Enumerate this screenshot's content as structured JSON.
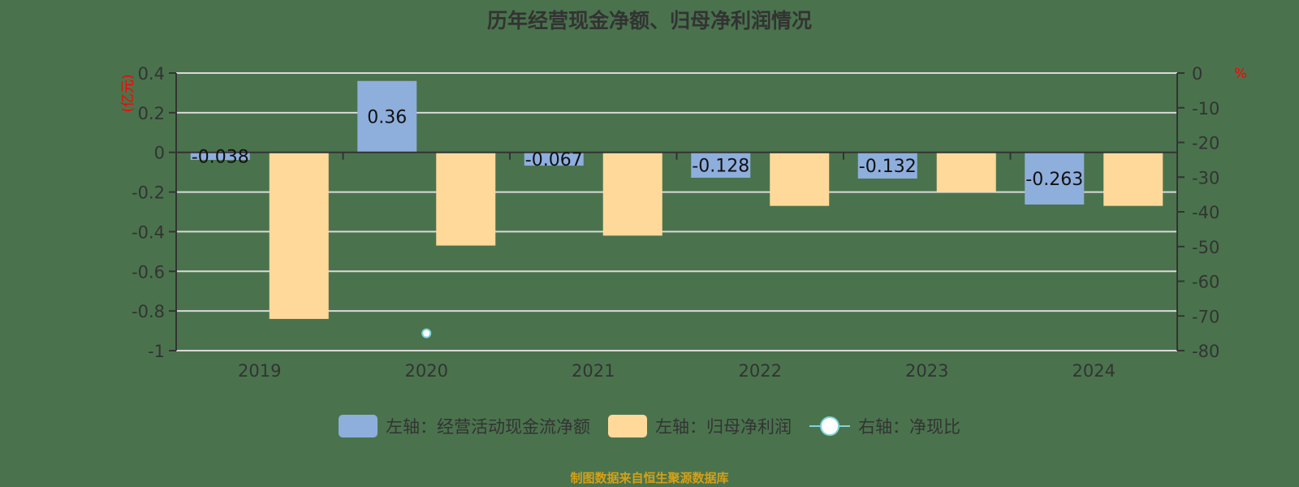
{
  "title": "历年经营现金净额、归母净利润情况",
  "left_axis": {
    "unit": "(亿元)",
    "ticks": [
      "0.4",
      "0.2",
      "0",
      "-0.2",
      "-0.4",
      "-0.6",
      "-0.8",
      "-1"
    ]
  },
  "right_axis": {
    "unit": "%",
    "ticks": [
      "0",
      "-10",
      "-20",
      "-30",
      "-40",
      "-50",
      "-60",
      "-70",
      "-80"
    ]
  },
  "categories": [
    "2019",
    "2020",
    "2021",
    "2022",
    "2023",
    "2024"
  ],
  "labels": {
    "cash": [
      "-0.038",
      "0.36",
      "-0.067",
      "-0.128",
      "-0.132",
      "-0.263"
    ]
  },
  "legend": {
    "cash": "左轴：经营活动现金流净额",
    "profit": "左轴：归母净利润",
    "ratio": "右轴：净现比"
  },
  "source": "制图数据来自恒生聚源数据库",
  "colors": {
    "background": "#4a734d",
    "cash": "#8eaedc",
    "profit": "#ffd99a",
    "ratio_line": "#7fd3d9",
    "gridline": "#d9d9d9",
    "axis": "#333333",
    "unit": "#ff0000",
    "source": "#d4a017"
  },
  "chart_data": {
    "type": "bar",
    "title": "历年经营现金净额、归母净利润情况",
    "categories": [
      "2019",
      "2020",
      "2021",
      "2022",
      "2023",
      "2024"
    ],
    "series": [
      {
        "name": "左轴：经营活动现金流净额",
        "axis": "left",
        "type": "bar",
        "values": [
          -0.038,
          0.36,
          -0.067,
          -0.128,
          -0.132,
          -0.263
        ]
      },
      {
        "name": "左轴：归母净利润",
        "axis": "left",
        "type": "bar",
        "values": [
          -0.84,
          -0.47,
          -0.42,
          -0.27,
          -0.2,
          -0.27
        ]
      },
      {
        "name": "右轴：净现比",
        "axis": "right",
        "type": "line",
        "values": [
          null,
          -75,
          null,
          null,
          null,
          null
        ]
      }
    ],
    "ylabel_left": "(亿元)",
    "ylabel_right": "%",
    "ylim_left": [
      -1,
      0.4
    ],
    "ylim_right": [
      -80,
      0
    ],
    "grid": true,
    "legend_position": "bottom"
  }
}
